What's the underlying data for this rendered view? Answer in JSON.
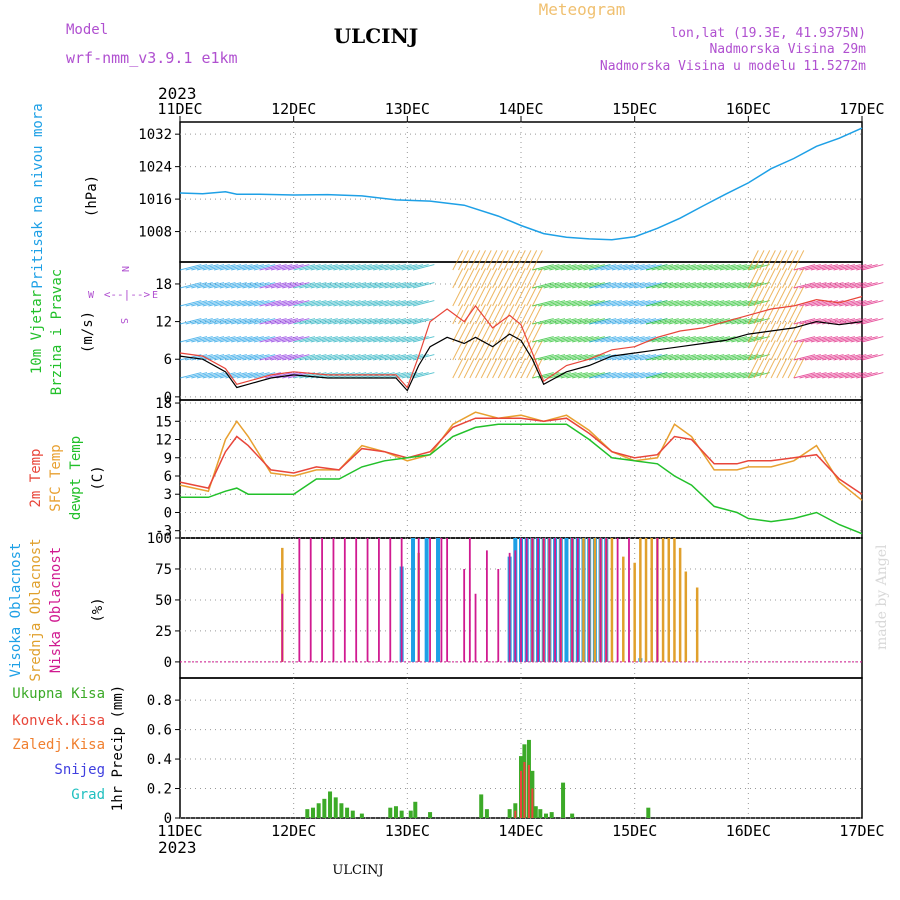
{
  "header": {
    "app_title": "Meteogram",
    "station": "ULCINJ",
    "model_label": "Model",
    "model_name": "wrf-nmm_v3.9.1 e1km",
    "coords": "lon,lat (19.3E, 41.9375N)",
    "elevation": "Nadmorska Visina 29m",
    "model_elevation": "Nadmorska Visina u modelu 11.5272m",
    "year_top": "2023",
    "year_bottom": "2023",
    "footer_station": "ULCINJ",
    "credit": "made by Angel"
  },
  "time_axis": {
    "labels": [
      "11DEC",
      "12DEC",
      "13DEC",
      "14DEC",
      "15DEC",
      "16DEC",
      "17DEC"
    ],
    "xlim": [
      0,
      6
    ]
  },
  "panel_labels": {
    "pressure": [
      "Pritisak na nivou mora",
      "(hPa)"
    ],
    "wind": [
      "10m Vjetar",
      "Brzina i Pravac",
      "(m/s)"
    ],
    "compass": {
      "n": "N",
      "s": "S",
      "e": "E",
      "w": "W",
      "arrow": "<--|-->"
    },
    "temp": [
      "2m Temp",
      "SFC Temp",
      "dewpt Temp",
      "(C)"
    ],
    "cloud": [
      "Visoka Oblacnost",
      "Srednja Oblacnost",
      "Niska Oblacnost",
      "(%)"
    ],
    "precip_ylabel": "1hr Precip (mm)",
    "precip_legend": [
      "Ukupna Kisa",
      "Konvek.Kisa",
      "Zaledj.Kisa",
      "Snijeg",
      "Grad"
    ]
  },
  "colors": {
    "pressure": "#1ea0e6",
    "temp2m": "#e8463a",
    "sfc": "#e8a030",
    "dewpt": "#22c02a",
    "high_cloud": "#1ea0e6",
    "mid_cloud": "#e0a02c",
    "low_cloud": "#d01a90",
    "precip_total": "#3caa28",
    "precip_conv": "#e8463a",
    "precip_frozen": "#f08030",
    "snow": "#4040e0",
    "hail": "#20c0c0",
    "wind_mean": "#000000",
    "wind_gust": "#e8463a"
  },
  "chart_data": [
    {
      "type": "line",
      "title": "Pritisak na nivou mora",
      "ylabel": "(hPa)",
      "yticks": [
        1008,
        1016,
        1024,
        1032
      ],
      "ylim": [
        1000.5,
        1035
      ],
      "series": [
        {
          "name": "Pritisak na nivou mora",
          "x": [
            0,
            0.2,
            0.4,
            0.5,
            0.7,
            1.0,
            1.3,
            1.6,
            1.9,
            2.2,
            2.5,
            2.8,
            3.0,
            3.2,
            3.4,
            3.6,
            3.8,
            4.0,
            4.2,
            4.4,
            4.6,
            4.8,
            5.0,
            5.2,
            5.4,
            5.6,
            5.8,
            6.0
          ],
          "values": [
            1017.5,
            1017.3,
            1017.8,
            1017.2,
            1017.2,
            1017.0,
            1017.1,
            1016.8,
            1015.8,
            1015.5,
            1014.5,
            1011.8,
            1009.5,
            1007.5,
            1006.6,
            1006.2,
            1006.0,
            1006.7,
            1008.8,
            1011.3,
            1014.3,
            1017.2,
            1020.0,
            1023.5,
            1026.0,
            1029.0,
            1031.0,
            1033.5
          ]
        }
      ]
    },
    {
      "type": "line",
      "title": "10m Vjetar Brzina i Pravac",
      "ylabel": "(m/s)",
      "yticks": [
        0,
        6,
        12,
        18
      ],
      "ylim": [
        -0.5,
        21.5
      ],
      "series": [
        {
          "name": "mean",
          "x": [
            0,
            0.2,
            0.4,
            0.5,
            0.6,
            0.8,
            1.0,
            1.3,
            1.6,
            1.9,
            2.0,
            2.1,
            2.2,
            2.35,
            2.5,
            2.6,
            2.75,
            2.9,
            3.0,
            3.1,
            3.2,
            3.4,
            3.6,
            3.8,
            4.0,
            4.2,
            4.4,
            4.6,
            4.8,
            5.0,
            5.2,
            5.4,
            5.6,
            5.8,
            6.0
          ],
          "values": [
            6.5,
            6.0,
            4.0,
            1.5,
            2.0,
            3.0,
            3.5,
            3.0,
            3.0,
            3.0,
            1.0,
            5.0,
            8.0,
            9.5,
            8.5,
            9.5,
            8.0,
            10.0,
            9.0,
            6.0,
            2.0,
            4.0,
            5.0,
            6.5,
            7.0,
            7.5,
            8.0,
            8.5,
            9.0,
            10.0,
            10.5,
            11.0,
            12.0,
            11.5,
            12.0
          ]
        },
        {
          "name": "gust",
          "x": [
            0,
            0.2,
            0.4,
            0.5,
            0.6,
            0.8,
            1.0,
            1.3,
            1.6,
            1.9,
            2.0,
            2.1,
            2.2,
            2.35,
            2.5,
            2.6,
            2.75,
            2.9,
            3.0,
            3.1,
            3.2,
            3.4,
            3.6,
            3.8,
            4.0,
            4.2,
            4.4,
            4.6,
            4.8,
            5.0,
            5.2,
            5.4,
            5.6,
            5.8,
            6.0
          ],
          "values": [
            7.0,
            6.5,
            4.5,
            2.0,
            2.5,
            3.5,
            4.0,
            3.5,
            3.5,
            3.5,
            1.5,
            6.5,
            12.0,
            14.0,
            12.0,
            14.5,
            11.0,
            13.0,
            11.5,
            7.0,
            2.5,
            5.0,
            6.0,
            7.5,
            8.0,
            9.5,
            10.5,
            11.0,
            12.0,
            13.0,
            14.0,
            14.5,
            15.5,
            15.0,
            16.0
          ]
        }
      ]
    },
    {
      "type": "line",
      "title": "2m Temp / SFC Temp / dewpt Temp",
      "ylabel": "(C)",
      "yticks": [
        -3,
        0,
        3,
        6,
        9,
        12,
        15,
        18
      ],
      "ylim": [
        -4.2,
        18.5
      ],
      "series": [
        {
          "name": "2m Temp",
          "x": [
            0,
            0.25,
            0.4,
            0.5,
            0.6,
            0.8,
            1.0,
            1.2,
            1.4,
            1.6,
            1.8,
            2.0,
            2.2,
            2.4,
            2.6,
            2.8,
            3.0,
            3.2,
            3.4,
            3.6,
            3.8,
            4.0,
            4.2,
            4.35,
            4.5,
            4.7,
            4.9,
            5.0,
            5.2,
            5.4,
            5.6,
            5.8,
            6.0
          ],
          "values": [
            5.0,
            4.0,
            10.0,
            12.5,
            11.0,
            7.0,
            6.5,
            7.5,
            7.0,
            10.5,
            10.0,
            9.0,
            10.0,
            14.0,
            15.5,
            15.5,
            15.5,
            15.0,
            15.5,
            13.0,
            10.0,
            9.0,
            9.5,
            12.5,
            12.0,
            8.0,
            8.0,
            8.5,
            8.5,
            9.0,
            9.5,
            5.5,
            3.0
          ]
        },
        {
          "name": "SFC Temp",
          "x": [
            0,
            0.25,
            0.4,
            0.5,
            0.6,
            0.8,
            1.0,
            1.2,
            1.4,
            1.6,
            1.8,
            2.0,
            2.2,
            2.4,
            2.6,
            2.8,
            3.0,
            3.2,
            3.4,
            3.6,
            3.8,
            4.0,
            4.2,
            4.35,
            4.5,
            4.7,
            4.9,
            5.0,
            5.2,
            5.4,
            5.6,
            5.8,
            6.0
          ],
          "values": [
            4.5,
            3.5,
            12.0,
            15.0,
            12.5,
            6.5,
            6.0,
            7.0,
            7.0,
            11.0,
            10.0,
            8.5,
            9.5,
            14.5,
            16.5,
            15.5,
            16.0,
            15.0,
            16.0,
            13.5,
            10.0,
            8.5,
            9.0,
            14.5,
            12.5,
            7.0,
            7.0,
            7.5,
            7.5,
            8.5,
            11.0,
            5.0,
            2.0
          ]
        },
        {
          "name": "dewpt Temp",
          "x": [
            0,
            0.25,
            0.4,
            0.5,
            0.6,
            0.8,
            1.0,
            1.2,
            1.4,
            1.6,
            1.8,
            2.0,
            2.2,
            2.4,
            2.6,
            2.8,
            3.0,
            3.2,
            3.4,
            3.6,
            3.8,
            4.0,
            4.2,
            4.35,
            4.5,
            4.7,
            4.9,
            5.0,
            5.2,
            5.4,
            5.6,
            5.8,
            6.0
          ],
          "values": [
            2.5,
            2.5,
            3.5,
            4.0,
            3.0,
            3.0,
            3.0,
            5.5,
            5.5,
            7.5,
            8.5,
            9.0,
            9.5,
            12.5,
            14.0,
            14.5,
            14.5,
            14.5,
            14.5,
            12.0,
            9.0,
            8.5,
            8.0,
            6.0,
            4.5,
            1.0,
            0.0,
            -1.0,
            -1.5,
            -1.0,
            0.0,
            -2.0,
            -3.5
          ]
        }
      ]
    },
    {
      "type": "bar",
      "title": "Visoka / Srednja / Niska Oblacnost",
      "ylabel": "(%)",
      "yticks": [
        0,
        25,
        50,
        75,
        100
      ],
      "ylim": [
        0,
        100
      ],
      "series": [
        {
          "name": "Visoka Oblacnost",
          "x": [
            1.95,
            2.05,
            2.17,
            2.27,
            2.9,
            2.95,
            3.0,
            3.05,
            3.1,
            3.15,
            3.2,
            3.25,
            3.3,
            3.35,
            3.4,
            3.45,
            3.5,
            3.55,
            3.6,
            3.65,
            3.7,
            3.75,
            4.05
          ],
          "values": [
            77,
            100,
            100,
            100,
            85,
            100,
            100,
            100,
            100,
            100,
            100,
            100,
            100,
            100,
            100,
            100,
            100,
            100,
            100,
            100,
            100,
            100,
            3
          ]
        },
        {
          "name": "Srednja Oblacnost",
          "x": [
            0.9,
            2.1,
            3.1,
            3.2,
            3.25,
            3.35,
            3.45,
            3.55,
            3.6,
            3.65,
            3.7,
            3.75,
            3.8,
            3.9,
            4.0,
            4.05,
            4.1,
            4.15,
            4.2,
            4.25,
            4.3,
            4.35,
            4.4,
            4.45,
            4.55
          ],
          "values": [
            92,
            88,
            100,
            100,
            100,
            100,
            100,
            100,
            100,
            100,
            100,
            100,
            100,
            85,
            80,
            100,
            100,
            100,
            100,
            100,
            100,
            100,
            92,
            73,
            60
          ]
        },
        {
          "name": "Niska Oblacnost",
          "x": [
            0.9,
            1.05,
            1.15,
            1.25,
            1.35,
            1.45,
            1.55,
            1.65,
            1.75,
            1.85,
            1.95,
            2.1,
            2.2,
            2.3,
            2.35,
            2.5,
            2.55,
            2.6,
            2.7,
            2.8,
            2.9,
            2.95,
            3.0,
            3.05,
            3.1,
            3.15,
            3.2,
            3.25,
            3.3,
            3.35,
            3.45,
            3.5,
            3.6,
            3.7,
            3.75,
            3.85,
            3.95,
            4.2
          ],
          "values": [
            55,
            100,
            100,
            100,
            100,
            100,
            100,
            100,
            100,
            100,
            100,
            100,
            100,
            100,
            100,
            75,
            100,
            55,
            90,
            75,
            88,
            90,
            100,
            100,
            100,
            100,
            100,
            100,
            100,
            100,
            100,
            100,
            100,
            100,
            100,
            100,
            100,
            100
          ]
        }
      ]
    },
    {
      "type": "bar",
      "title": "1hr Precip",
      "ylabel": "1hr Precip (mm)",
      "yticks": [
        0,
        0.2,
        0.4,
        0.6,
        0.8
      ],
      "ylim": [
        0,
        0.95
      ],
      "series": [
        {
          "name": "Ukupna Kisa",
          "x": [
            1.12,
            1.17,
            1.22,
            1.27,
            1.32,
            1.37,
            1.42,
            1.47,
            1.52,
            1.6,
            1.85,
            1.9,
            1.95,
            2.03,
            2.07,
            2.2,
            2.65,
            2.7,
            2.9,
            2.95,
            3.0,
            3.03,
            3.07,
            3.1,
            3.13,
            3.17,
            3.22,
            3.27,
            3.37,
            3.45,
            4.12
          ],
          "values": [
            0.06,
            0.07,
            0.1,
            0.13,
            0.18,
            0.14,
            0.1,
            0.07,
            0.05,
            0.03,
            0.07,
            0.08,
            0.05,
            0.05,
            0.11,
            0.04,
            0.16,
            0.06,
            0.06,
            0.1,
            0.42,
            0.5,
            0.53,
            0.32,
            0.08,
            0.06,
            0.03,
            0.04,
            0.24,
            0.03,
            0.07
          ]
        },
        {
          "name": "Konvek.Kisa",
          "x": [
            2.95,
            3.0,
            3.03,
            3.07,
            3.1
          ],
          "values": [
            0.05,
            0.32,
            0.38,
            0.36,
            0.2
          ]
        }
      ]
    }
  ]
}
